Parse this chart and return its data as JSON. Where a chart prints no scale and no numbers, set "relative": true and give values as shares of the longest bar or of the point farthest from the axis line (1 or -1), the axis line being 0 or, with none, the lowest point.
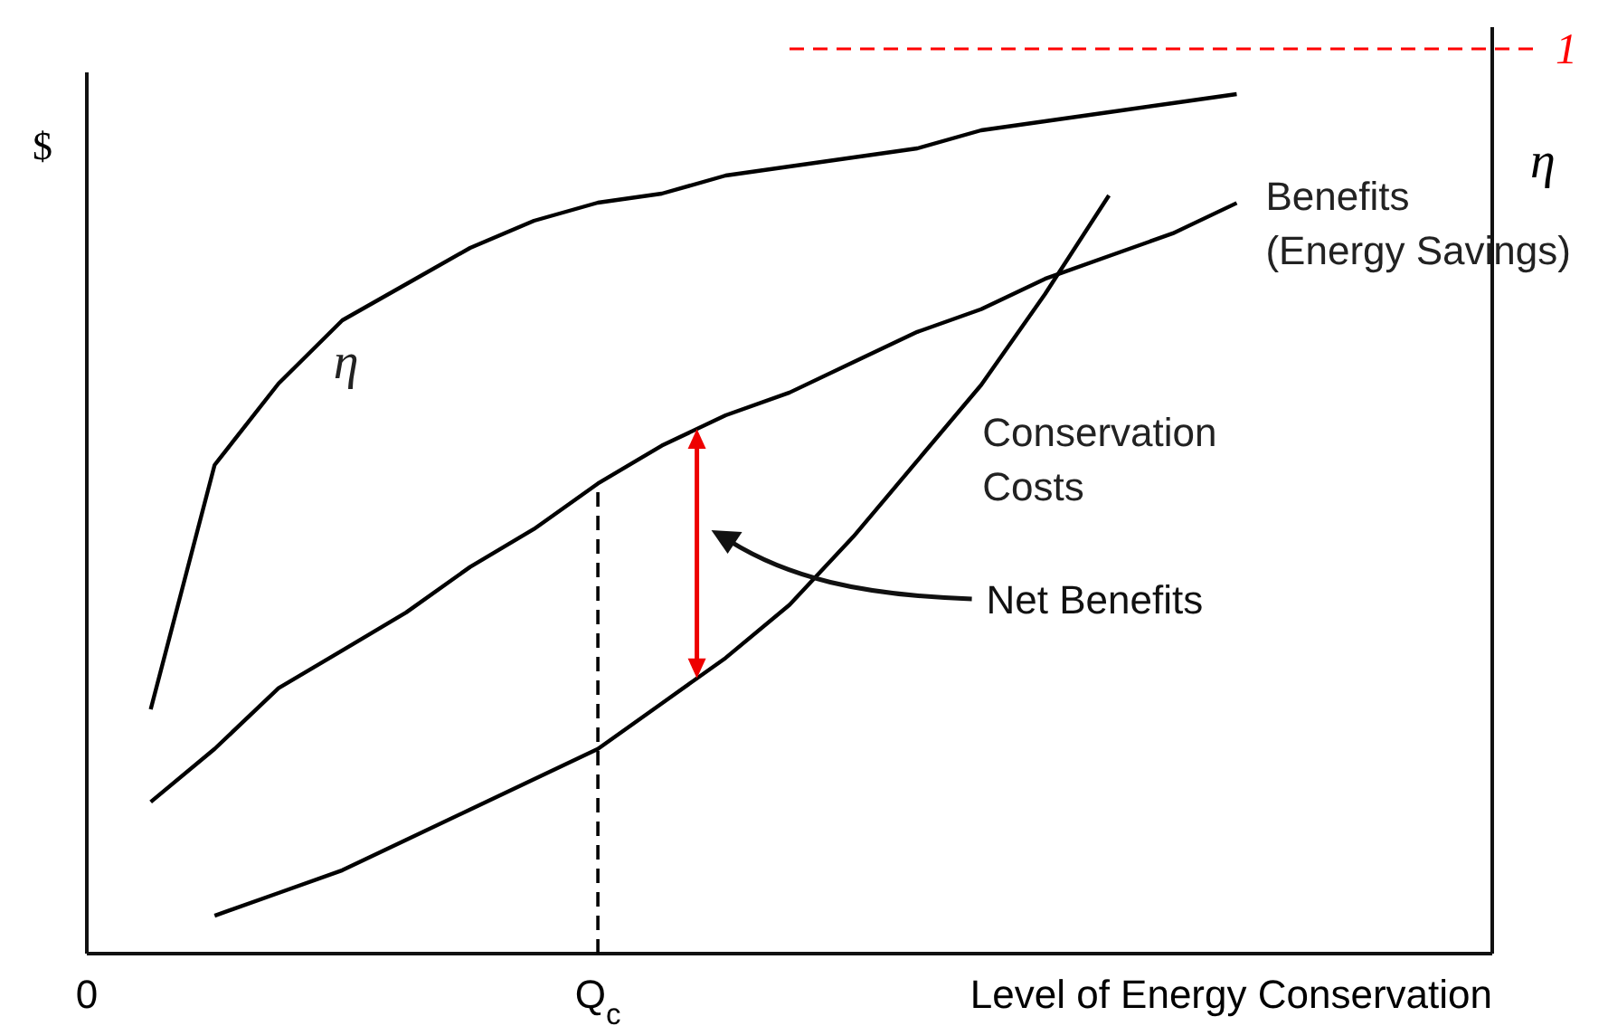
{
  "chart_data": {
    "type": "line",
    "relative": true,
    "ylabel": "$",
    "y2label": "η",
    "xlabel": "Level of Energy Conservation",
    "categories": [
      "0",
      null,
      null,
      null,
      null,
      null,
      null,
      null,
      "Q$_{c}$",
      null,
      null,
      null,
      null,
      null,
      null,
      null,
      null,
      null,
      null,
      null,
      null,
      null,
      null
    ],
    "y2lim": [
      0,
      1.024
    ],
    "series": [
      {
        "name": "Benefits\n(Energy Savings)",
        "color": "#000000",
        "values": [
          null,
          0.2,
          0.27,
          0.35,
          0.4,
          0.45,
          0.51,
          0.56,
          0.62,
          0.67,
          0.71,
          0.74,
          0.78,
          0.82,
          0.85,
          0.89,
          0.92,
          0.95,
          0.99,
          null,
          null,
          null,
          null
        ]
      },
      {
        "name": "Conservation\nCosts",
        "color": "#000000",
        "values": [
          null,
          null,
          0.05,
          0.08,
          0.11,
          0.15,
          0.19,
          0.23,
          0.27,
          0.33,
          0.39,
          0.46,
          0.55,
          0.65,
          0.75,
          0.87,
          1.0,
          null,
          null,
          null,
          null,
          null,
          null
        ]
      },
      {
        "name": "η",
        "color": "#000000",
        "axis": "y2",
        "values": [
          null,
          0.27,
          0.54,
          0.63,
          0.7,
          0.74,
          0.78,
          0.81,
          0.83,
          0.84,
          0.86,
          0.87,
          0.88,
          0.89,
          0.91,
          0.92,
          0.93,
          0.94,
          0.95,
          null,
          null,
          null,
          null
        ]
      }
    ],
    "ref_lines": [
      {
        "axis": "y2",
        "value": 1,
        "label": "1",
        "color": "#ff0000",
        "line_style": "dashed"
      },
      {
        "axis": "x",
        "value": "Q$_{c}$",
        "color": "#000000",
        "line_style": "dashed"
      }
    ],
    "annotations": [
      "Net Benefits"
    ],
    "marker": "none",
    "line_style": "solid"
  }
}
